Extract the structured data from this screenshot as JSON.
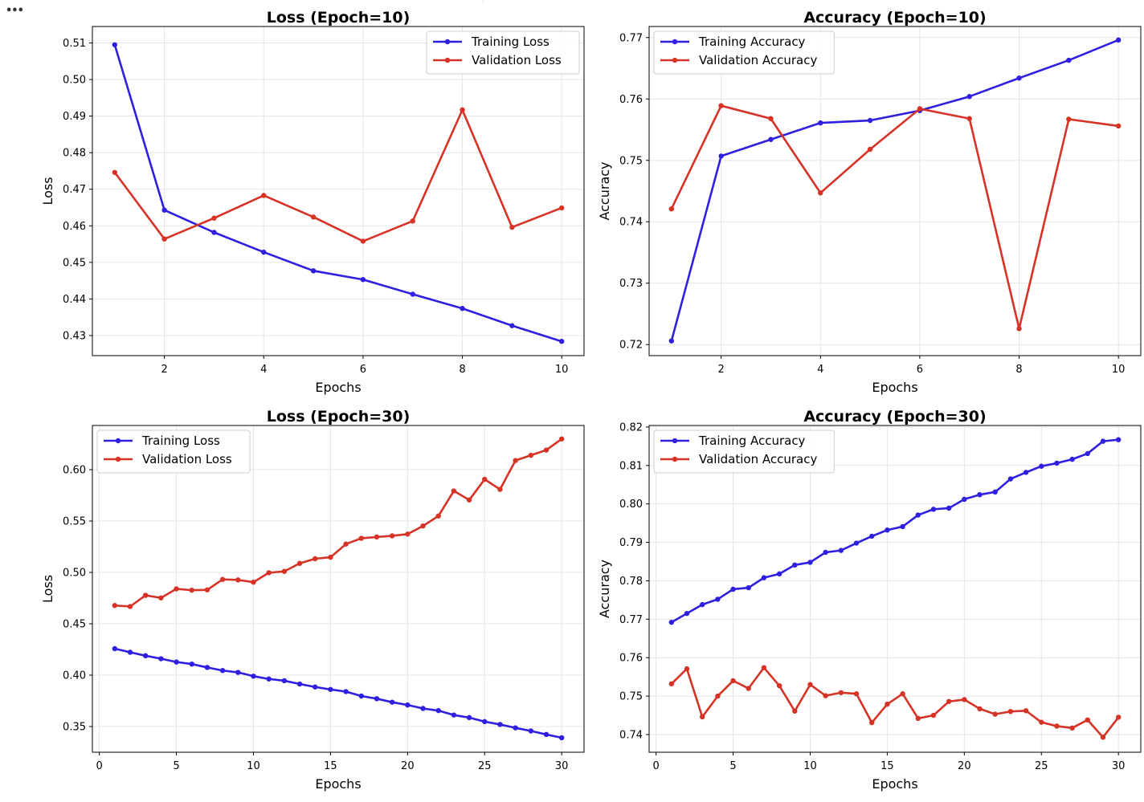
{
  "menu_icon": "ellipsis-icon",
  "chart_data": [
    {
      "type": "line",
      "title": "Loss (Epoch=10)",
      "xlabel": "Epochs",
      "ylabel": "Loss",
      "xlim": [
        0.55,
        10.45
      ],
      "ylim": [
        0.4245,
        0.5145
      ],
      "xticks": [
        2,
        4,
        6,
        8,
        10
      ],
      "yticks": [
        0.43,
        0.44,
        0.45,
        0.46,
        0.47,
        0.48,
        0.49,
        0.5,
        0.51
      ],
      "ytick_labels": [
        "0.43",
        "0.44",
        "0.45",
        "0.46",
        "0.47",
        "0.48",
        "0.49",
        "0.50",
        "0.51"
      ],
      "grid": true,
      "legend_position": "upper right",
      "x": [
        1,
        2,
        3,
        4,
        5,
        6,
        7,
        8,
        9,
        10
      ],
      "series": [
        {
          "name": "Training Loss",
          "color": "#2f1fe0",
          "values": [
            0.5095,
            0.4643,
            0.4582,
            0.4528,
            0.4477,
            0.4453,
            0.4413,
            0.4374,
            0.4327,
            0.4284
          ]
        },
        {
          "name": "Validation Loss",
          "color": "#d63226",
          "values": [
            0.4746,
            0.4564,
            0.4621,
            0.4683,
            0.4624,
            0.4558,
            0.4613,
            0.4917,
            0.4596,
            0.4649
          ]
        }
      ]
    },
    {
      "type": "line",
      "title": "Accuracy (Epoch=10)",
      "xlabel": "Epochs",
      "ylabel": "Accuracy",
      "xlim": [
        0.55,
        10.45
      ],
      "ylim": [
        0.7182,
        0.7718
      ],
      "xticks": [
        2,
        4,
        6,
        8,
        10
      ],
      "yticks": [
        0.72,
        0.73,
        0.74,
        0.75,
        0.76,
        0.77
      ],
      "ytick_labels": [
        "0.72",
        "0.73",
        "0.74",
        "0.75",
        "0.76",
        "0.77"
      ],
      "grid": true,
      "legend_position": "upper left",
      "x": [
        1,
        2,
        3,
        4,
        5,
        6,
        7,
        8,
        9,
        10
      ],
      "series": [
        {
          "name": "Training Accuracy",
          "color": "#2f1fe0",
          "values": [
            0.7206,
            0.7507,
            0.7534,
            0.7561,
            0.7565,
            0.7581,
            0.7604,
            0.7634,
            0.7663,
            0.7696
          ]
        },
        {
          "name": "Validation Accuracy",
          "color": "#d63226",
          "values": [
            0.7421,
            0.7589,
            0.7568,
            0.7447,
            0.7518,
            0.7584,
            0.7568,
            0.7226,
            0.7567,
            0.7556
          ]
        }
      ]
    },
    {
      "type": "line",
      "title": "Loss (Epoch=30)",
      "xlabel": "Epochs",
      "ylabel": "Loss",
      "xlim": [
        -0.45,
        31.45
      ],
      "ylim": [
        0.325,
        0.643
      ],
      "xticks": [
        0,
        5,
        10,
        15,
        20,
        25,
        30
      ],
      "yticks": [
        0.35,
        0.4,
        0.45,
        0.5,
        0.55,
        0.6
      ],
      "ytick_labels": [
        "0.35",
        "0.40",
        "0.45",
        "0.50",
        "0.55",
        "0.60"
      ],
      "grid": true,
      "legend_position": "upper left",
      "x": [
        1,
        2,
        3,
        4,
        5,
        6,
        7,
        8,
        9,
        10,
        11,
        12,
        13,
        14,
        15,
        16,
        17,
        18,
        19,
        20,
        21,
        22,
        23,
        24,
        25,
        26,
        27,
        28,
        29,
        30
      ],
      "series": [
        {
          "name": "Training Loss",
          "color": "#2f1fe0",
          "values": [
            0.4258,
            0.4223,
            0.4189,
            0.416,
            0.4128,
            0.4108,
            0.4075,
            0.4045,
            0.4027,
            0.399,
            0.3963,
            0.3946,
            0.3914,
            0.3885,
            0.3861,
            0.384,
            0.3797,
            0.3771,
            0.3737,
            0.371,
            0.3676,
            0.3655,
            0.3612,
            0.3587,
            0.3548,
            0.352,
            0.3487,
            0.3457,
            0.3423,
            0.3391
          ]
        },
        {
          "name": "Validation Loss",
          "color": "#d63226",
          "values": [
            0.4678,
            0.4668,
            0.4777,
            0.4752,
            0.484,
            0.4827,
            0.483,
            0.4932,
            0.4927,
            0.4905,
            0.4997,
            0.501,
            0.5088,
            0.5133,
            0.5148,
            0.5276,
            0.5332,
            0.5345,
            0.5356,
            0.5373,
            0.5452,
            0.5549,
            0.5793,
            0.5705,
            0.5906,
            0.5808,
            0.6089,
            0.614,
            0.6191,
            0.6299
          ]
        }
      ]
    },
    {
      "type": "line",
      "title": "Accuracy (Epoch=30)",
      "xlabel": "Epochs",
      "ylabel": "Accuracy",
      "xlim": [
        -0.45,
        31.45
      ],
      "ylim": [
        0.7354,
        0.8204
      ],
      "xticks": [
        0,
        5,
        10,
        15,
        20,
        25,
        30
      ],
      "yticks": [
        0.74,
        0.75,
        0.76,
        0.77,
        0.78,
        0.79,
        0.8,
        0.81,
        0.82
      ],
      "ytick_labels": [
        "0.74",
        "0.75",
        "0.76",
        "0.77",
        "0.78",
        "0.79",
        "0.80",
        "0.81",
        "0.82"
      ],
      "grid": true,
      "legend_position": "upper left",
      "x": [
        1,
        2,
        3,
        4,
        5,
        6,
        7,
        8,
        9,
        10,
        11,
        12,
        13,
        14,
        15,
        16,
        17,
        18,
        19,
        20,
        21,
        22,
        23,
        24,
        25,
        26,
        27,
        28,
        29,
        30
      ],
      "series": [
        {
          "name": "Training Accuracy",
          "color": "#2f1fe0",
          "values": [
            0.7692,
            0.7715,
            0.7738,
            0.7752,
            0.7778,
            0.7782,
            0.7808,
            0.7818,
            0.7841,
            0.7848,
            0.7874,
            0.7879,
            0.7898,
            0.7916,
            0.7932,
            0.7941,
            0.7971,
            0.7986,
            0.7989,
            0.8012,
            0.8024,
            0.8031,
            0.8065,
            0.8082,
            0.8098,
            0.8106,
            0.8116,
            0.8131,
            0.8163,
            0.8167
          ]
        },
        {
          "name": "Validation Accuracy",
          "color": "#d63226",
          "values": [
            0.7532,
            0.7571,
            0.7446,
            0.75,
            0.754,
            0.752,
            0.7574,
            0.7527,
            0.7461,
            0.753,
            0.7501,
            0.7509,
            0.7506,
            0.7431,
            0.7479,
            0.7506,
            0.7442,
            0.745,
            0.7486,
            0.7491,
            0.7467,
            0.7453,
            0.746,
            0.7462,
            0.7432,
            0.7422,
            0.7417,
            0.7438,
            0.7393,
            0.7445
          ]
        }
      ]
    }
  ]
}
